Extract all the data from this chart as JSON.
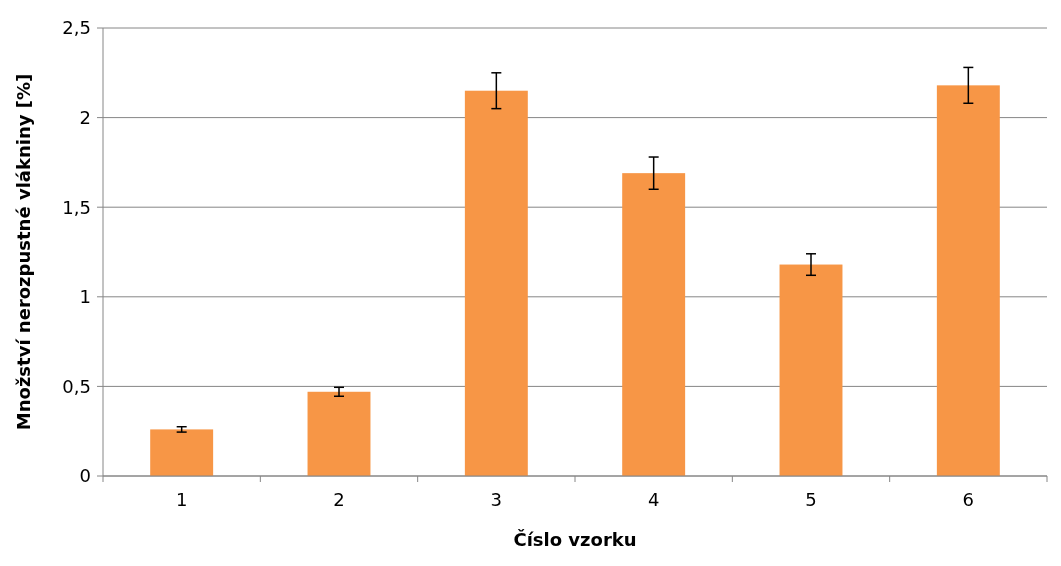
{
  "chart_data": {
    "type": "bar",
    "xlabel": "Číslo vzorku",
    "ylabel": "Množství nerozpustné vlákniny [%]",
    "categories": [
      "1",
      "2",
      "3",
      "4",
      "5",
      "6"
    ],
    "values": [
      0.26,
      0.47,
      2.15,
      1.69,
      1.18,
      2.18
    ],
    "errors": [
      0.015,
      0.025,
      0.1,
      0.09,
      0.06,
      0.1
    ],
    "color": "#f79646",
    "ylim": [
      0,
      2.5
    ],
    "yticks": [
      0,
      {
        "value": 0.5,
        "label": "0,5"
      },
      1,
      {
        "value": 1.5,
        "label": "1,5"
      },
      2,
      {
        "value": 2.5,
        "label": "2,5"
      }
    ],
    "grid": "y"
  }
}
